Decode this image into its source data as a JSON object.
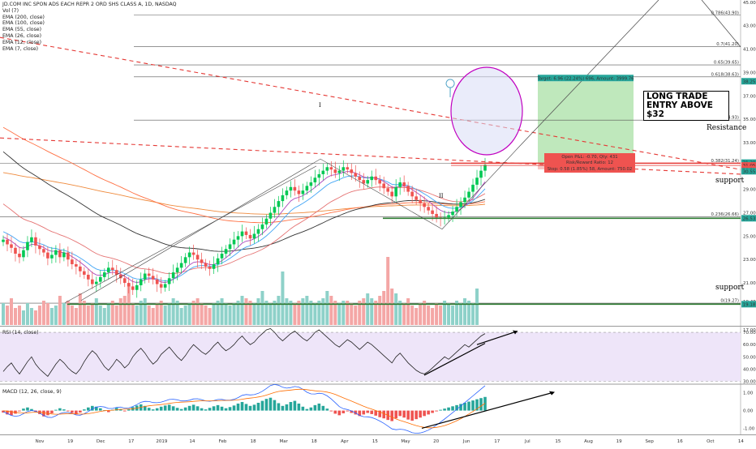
{
  "chart_data": {
    "type": "candlestick",
    "title": "JD.COM INC SPON ADS EACH REPR 2 ORD SHS CLASS A, 1D, NASDAQ",
    "legend": [
      "JD.COM INC SPON ADS EACH REPR 2 ORD SHS CLASS A, 1D, NASDAQ",
      "Vol (7)",
      "EMA (200, close)",
      "EMA (100, close)",
      "EMA (55, close)",
      "EMA (26, close)",
      "EMA (12, close)",
      "EMA (7, close)"
    ],
    "x_ticks": [
      "Nov",
      "19",
      "Dec",
      "17",
      "2019",
      "14",
      "Feb",
      "18",
      "Mar",
      "18",
      "Apr",
      "15",
      "May",
      "20",
      "Jun",
      "17",
      "Jul",
      "15",
      "Aug",
      "19",
      "Sep",
      "16",
      "Oct",
      "14",
      "Nov"
    ],
    "price_axis": {
      "ylim": [
        17.4,
        45.2
      ],
      "ticks": [
        "45.00",
        "43.00",
        "41.00",
        "39.00",
        "37.00",
        "35.00",
        "33.00",
        "31.00",
        "29.00",
        "27.00",
        "25.00",
        "23.00",
        "21.00",
        "19.40",
        "17.00"
      ],
      "ticks_values": [
        45,
        43,
        41,
        39,
        37,
        35,
        33,
        31,
        29,
        27,
        25,
        23,
        21,
        19.4,
        17
      ],
      "badges": [
        {
          "label": "38.25",
          "value": 38.25,
          "color": "#26a69a"
        },
        {
          "label": "31.29",
          "value": 31.29,
          "color": "#26a69a"
        },
        {
          "label": "31.05",
          "value": 31.05,
          "color": "#ef5350"
        },
        {
          "label": "30.71",
          "value": 30.71,
          "color": "#ef5350"
        },
        {
          "label": "30.55",
          "value": 30.55,
          "color": "#26a69a"
        },
        {
          "label": "26.53",
          "value": 26.53,
          "color": "#26a69a"
        },
        {
          "label": "19.18",
          "value": 19.18,
          "color": "#26a69a"
        }
      ]
    },
    "fib_levels": [
      {
        "label": "0.786(43.90)",
        "value": 43.9
      },
      {
        "label": "0.7(41.20)",
        "value": 41.2
      },
      {
        "label": "0.65(39.65)",
        "value": 39.65
      },
      {
        "label": "0.618(38.63)",
        "value": 38.63
      },
      {
        "label": "0.5(34.93)",
        "value": 34.93
      },
      {
        "label": "0.382(31.24)",
        "value": 31.24
      },
      {
        "label": "0.236(26.66)",
        "value": 26.66
      },
      {
        "label": "0(19.27)",
        "value": 19.27
      }
    ],
    "price_series": [
      24.7,
      24.3,
      24.0,
      23.5,
      23.2,
      23.8,
      24.5,
      24.9,
      24.2,
      23.9,
      23.6,
      23.1,
      23.4,
      23.8,
      23.2,
      23.6,
      23.0,
      22.6,
      22.4,
      22.0,
      21.7,
      21.3,
      20.9,
      21.1,
      21.5,
      21.9,
      22.3,
      22.1,
      21.7,
      21.4,
      21.0,
      20.7,
      20.4,
      20.8,
      21.3,
      21.8,
      21.6,
      21.3,
      20.9,
      20.6,
      20.9,
      21.4,
      21.9,
      22.3,
      22.7,
      23.2,
      23.6,
      23.4,
      23.0,
      22.7,
      22.4,
      22.2,
      22.6,
      23.1,
      23.5,
      23.9,
      24.3,
      24.7,
      25.0,
      25.4,
      25.1,
      24.8,
      25.2,
      25.6,
      26.0,
      26.5,
      27.0,
      27.5,
      28.0,
      28.5,
      28.9,
      29.2,
      28.9,
      28.6,
      28.9,
      29.3,
      29.6,
      30.0,
      30.3,
      30.6,
      30.9,
      30.7,
      30.4,
      30.6,
      30.9,
      30.7,
      30.4,
      30.1,
      29.8,
      29.5,
      29.8,
      30.1,
      29.8,
      29.5,
      29.1,
      28.8,
      28.4,
      29.2,
      29.6,
      29.3,
      28.8,
      28.4,
      28.1,
      27.8,
      27.5,
      27.2,
      26.9,
      26.6,
      26.5,
      26.6,
      26.8,
      27.1,
      27.5,
      27.9,
      28.3,
      28.8,
      29.4,
      30.0,
      30.6,
      31.1
    ],
    "volume_series": [
      0.9,
      0.8,
      1.1,
      0.7,
      0.8,
      0.6,
      0.9,
      0.7,
      0.6,
      0.8,
      1.0,
      0.9,
      0.7,
      0.8,
      1.2,
      0.9,
      1.0,
      0.8,
      0.7,
      1.3,
      1.0,
      0.8,
      0.9,
      1.1,
      0.8,
      0.7,
      0.9,
      1.0,
      0.8,
      1.1,
      1.2,
      1.7,
      0.9,
      0.8,
      1.0,
      1.1,
      0.8,
      0.7,
      0.9,
      1.0,
      0.8,
      0.9,
      1.1,
      1.0,
      0.7,
      0.8,
      0.9,
      1.0,
      1.1,
      0.9,
      0.8,
      0.7,
      0.9,
      1.0,
      1.1,
      0.9,
      0.8,
      0.9,
      1.0,
      1.2,
      1.1,
      1.0,
      0.9,
      1.1,
      1.4,
      1.0,
      0.9,
      1.0,
      1.2,
      2.2,
      1.1,
      1.0,
      0.9,
      1.0,
      1.1,
      1.2,
      1.0,
      0.9,
      1.0,
      1.1,
      1.4,
      1.2,
      1.0,
      0.9,
      1.0,
      1.0,
      0.9,
      0.8,
      1.0,
      1.1,
      1.3,
      1.1,
      1.0,
      1.2,
      1.4,
      2.8,
      1.5,
      1.3,
      1.0,
      0.9,
      1.1,
      0.8,
      0.7,
      0.9,
      1.0,
      0.8,
      0.7,
      0.9,
      0.8,
      1.0,
      0.9,
      0.8,
      1.0,
      0.9,
      1.1,
      1.0,
      0.9,
      1.5
    ],
    "rsi": {
      "label": "RSI (14, close)",
      "ylim": [
        29,
        74
      ],
      "ticks": [
        "70.00",
        "60.00",
        "50.00",
        "40.00",
        "30.00"
      ],
      "ticks_values": [
        70,
        60,
        50,
        40,
        30
      ],
      "series": [
        38,
        42,
        45,
        40,
        36,
        41,
        46,
        50,
        44,
        40,
        37,
        34,
        39,
        44,
        48,
        45,
        41,
        38,
        36,
        40,
        46,
        51,
        55,
        52,
        47,
        42,
        39,
        43,
        48,
        45,
        41,
        44,
        50,
        54,
        57,
        53,
        48,
        44,
        47,
        52,
        55,
        58,
        54,
        50,
        47,
        51,
        56,
        60,
        57,
        54,
        52,
        55,
        59,
        62,
        58,
        55,
        57,
        60,
        64,
        67,
        63,
        60,
        62,
        66,
        69,
        72,
        73,
        70,
        66,
        63,
        66,
        69,
        71,
        68,
        65,
        63,
        66,
        70,
        72,
        69,
        66,
        63,
        60,
        58,
        61,
        64,
        62,
        59,
        56,
        59,
        62,
        60,
        57,
        54,
        51,
        48,
        45,
        50,
        53,
        49,
        45,
        42,
        39,
        37,
        36,
        38,
        41,
        44,
        47,
        50,
        48,
        51,
        54,
        57,
        60,
        58,
        61,
        64,
        67,
        69
      ]
    },
    "macd": {
      "label": "MACD (12, 26, close, 9)",
      "ylim": [
        -1.3,
        1.4
      ],
      "ticks": [
        "1.00",
        "0.00",
        "-1.00"
      ],
      "ticks_values": [
        1,
        0,
        -1
      ],
      "histogram": [
        -0.05,
        -0.1,
        -0.12,
        -0.08,
        -0.02,
        0.05,
        0.08,
        0.04,
        -0.03,
        -0.09,
        -0.15,
        -0.12,
        -0.07,
        0.02,
        0.06,
        0.03,
        -0.02,
        -0.06,
        -0.1,
        -0.05,
        0.03,
        0.08,
        0.12,
        0.1,
        0.06,
        0.01,
        -0.04,
        0.02,
        0.07,
        0.04,
        -0.02,
        0.03,
        0.09,
        0.13,
        0.16,
        0.12,
        0.07,
        0.03,
        0.06,
        0.1,
        0.13,
        0.15,
        0.11,
        0.07,
        0.04,
        0.08,
        0.12,
        0.15,
        0.11,
        0.06,
        0.03,
        0.07,
        0.11,
        0.14,
        0.1,
        0.06,
        0.09,
        0.13,
        0.18,
        0.22,
        0.17,
        0.12,
        0.15,
        0.2,
        0.25,
        0.3,
        0.33,
        0.27,
        0.19,
        0.12,
        0.16,
        0.22,
        0.25,
        0.18,
        0.1,
        0.04,
        0.08,
        0.14,
        0.18,
        0.12,
        0.05,
        -0.02,
        -0.08,
        -0.12,
        -0.07,
        -0.02,
        -0.06,
        -0.1,
        -0.14,
        -0.1,
        -0.06,
        -0.09,
        -0.13,
        -0.17,
        -0.2,
        -0.24,
        -0.27,
        -0.2,
        -0.14,
        -0.18,
        -0.23,
        -0.26,
        -0.22,
        -0.18,
        -0.14,
        -0.1,
        -0.06,
        -0.02,
        0.02,
        0.05,
        0.08,
        0.11,
        0.14,
        0.17,
        0.2,
        0.23,
        0.26,
        0.29,
        0.32,
        0.35
      ]
    }
  },
  "annotations": {
    "target_label": "Target: 6.96 (22.24%) 696, Amount: 3999.76",
    "open_pl_label": "Open P&L: -0.70, Qty: 431",
    "risk_reward_label": "Risk/Reward Ratio: 12",
    "stop_label": "Stop: 0.58 (1.85%) 58, Amount: 750.02",
    "callout": "LONG TRADE ENTRY ABOVE $32",
    "resistance_label": "Resistance",
    "support_label_1": "support",
    "support_label_2": "support",
    "wave_i_label": "I",
    "wave_ii_label": "II"
  },
  "colors": {
    "bull": "#26a69a",
    "bull_bright": "#00c853",
    "bear": "#ef5350",
    "vol_bear": "#f4a6a5",
    "vol_bull": "#8ed1c9",
    "target_zone": "#b8e6b5",
    "stop_zone": "#f7c4c2",
    "resistance": "#e53935",
    "support": "#2e7d32",
    "rsi_bg": "#eee5f9",
    "ellipse_fill": "#d8dcf5",
    "ellipse_stroke": "#c000c0"
  }
}
